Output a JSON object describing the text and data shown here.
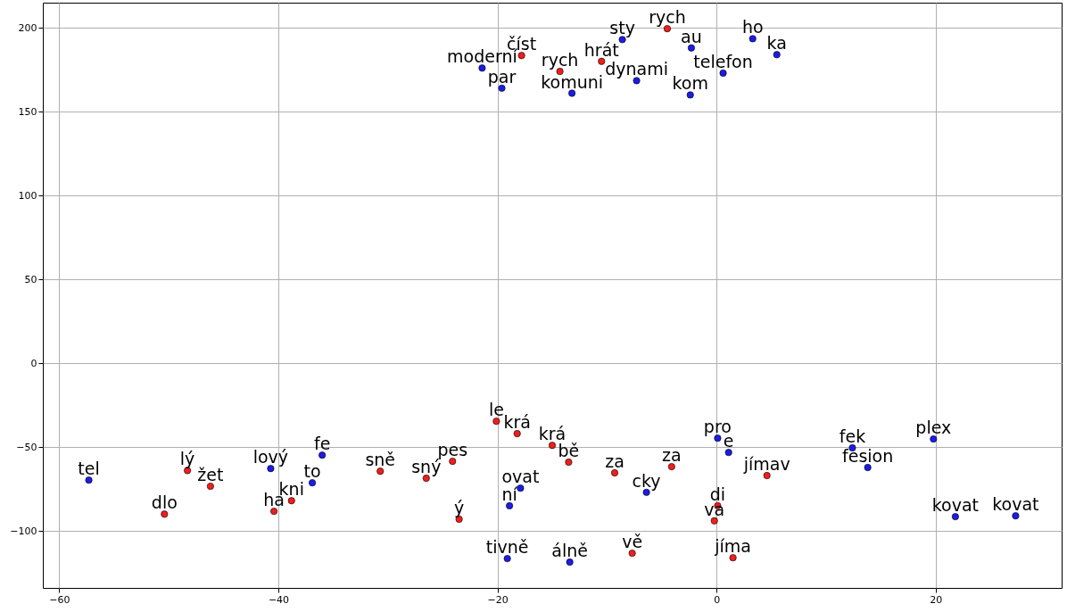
{
  "chart_data": {
    "type": "scatter",
    "grid": true,
    "marker": "circle",
    "xlim": [
      -61.5,
      31.5
    ],
    "ylim": [
      -134,
      215
    ],
    "xticks": [
      {
        "value": -60,
        "label": "−60"
      },
      {
        "value": -40,
        "label": "−40"
      },
      {
        "value": -20,
        "label": "−20"
      },
      0,
      20
    ],
    "yticks": [
      {
        "value": -100,
        "label": "−100"
      },
      {
        "value": -50,
        "label": "−50"
      },
      0,
      50,
      100,
      150,
      200
    ],
    "series": [
      {
        "color": "#f01e1e",
        "x": [
          -17.8,
          -14.3,
          -10.5,
          -4.5,
          -50.4,
          -48.3,
          -46.2,
          -40.4,
          -38.8,
          -30.7,
          -26.5,
          -24.1,
          -23.5,
          -20.1,
          -18.2,
          -15.0,
          -13.5,
          -9.3,
          -7.7,
          -4.1,
          4.6,
          0.1,
          -0.2,
          1.5
        ],
        "values": [
          183.5,
          174,
          180,
          199.5,
          -90,
          -64,
          -73.4,
          -88.3,
          -82,
          -64.4,
          -68.6,
          -58.5,
          -93,
          -34.6,
          -42,
          -49,
          -59,
          -65.4,
          -113.3,
          -61.7,
          -67,
          -85,
          -94,
          -116
        ]
      },
      {
        "color": "#1c1ce6",
        "x": [
          -21.4,
          -19.6,
          -13.2,
          -8.6,
          -7.3,
          -2.3,
          -2.4,
          0.6,
          3.3,
          5.5,
          -57.3,
          -40.7,
          -36.9,
          -36.0,
          -17.9,
          -18.9,
          -19.1,
          -13.4,
          -6.4,
          0.1,
          1.1,
          12.4,
          13.8,
          19.8,
          21.8,
          27.3
        ],
        "values": [
          176,
          164,
          161,
          193,
          168.5,
          188,
          160,
          173,
          193.5,
          184,
          -69.7,
          -62.8,
          -71.3,
          -54.8,
          -74.5,
          -85,
          -116.5,
          -118.6,
          -77,
          -44.7,
          -53.2,
          -50.5,
          -62.2,
          -45.2,
          -91.5,
          -91
        ]
      }
    ],
    "annotations": [
      {
        "text": "moderní",
        "x": -21.4,
        "y": 176
      },
      {
        "text": "číst",
        "x": -17.8,
        "y": 183.5
      },
      {
        "text": "par",
        "x": -19.6,
        "y": 164
      },
      {
        "text": "rych",
        "x": -14.3,
        "y": 174
      },
      {
        "text": "komuni",
        "x": -13.2,
        "y": 161
      },
      {
        "text": "hrát",
        "x": -10.5,
        "y": 180
      },
      {
        "text": "sty",
        "x": -8.6,
        "y": 193
      },
      {
        "text": "dynami",
        "x": -7.3,
        "y": 168.5
      },
      {
        "text": "rych",
        "x": -4.5,
        "y": 199.5
      },
      {
        "text": "au",
        "x": -2.3,
        "y": 188
      },
      {
        "text": "kom",
        "x": -2.4,
        "y": 160
      },
      {
        "text": "telefon",
        "x": 0.6,
        "y": 173
      },
      {
        "text": "ho",
        "x": 3.3,
        "y": 193.5
      },
      {
        "text": "ka",
        "x": 5.5,
        "y": 184
      },
      {
        "text": "tel",
        "x": -57.3,
        "y": -69.7
      },
      {
        "text": "dlo",
        "x": -50.4,
        "y": -90
      },
      {
        "text": "lý",
        "x": -48.3,
        "y": -64
      },
      {
        "text": "žet",
        "x": -46.2,
        "y": -73.4
      },
      {
        "text": "lový",
        "x": -40.7,
        "y": -62.8
      },
      {
        "text": "ha",
        "x": -40.4,
        "y": -88.3
      },
      {
        "text": "kni",
        "x": -38.8,
        "y": -82
      },
      {
        "text": "to",
        "x": -36.9,
        "y": -71.3
      },
      {
        "text": "fe",
        "x": -36.0,
        "y": -54.8
      },
      {
        "text": "sně",
        "x": -30.7,
        "y": -64.4
      },
      {
        "text": "sný",
        "x": -26.5,
        "y": -68.6
      },
      {
        "text": "pes",
        "x": -24.1,
        "y": -58.5
      },
      {
        "text": "ý",
        "x": -23.5,
        "y": -93
      },
      {
        "text": "le",
        "x": -20.1,
        "y": -34.6
      },
      {
        "text": "krá",
        "x": -18.2,
        "y": -42
      },
      {
        "text": "krá",
        "x": -15.0,
        "y": -49
      },
      {
        "text": "ovat",
        "x": -17.9,
        "y": -74.5
      },
      {
        "text": "ní",
        "x": -18.9,
        "y": -85
      },
      {
        "text": "tivně",
        "x": -19.1,
        "y": -116.5
      },
      {
        "text": "bě",
        "x": -13.5,
        "y": -59
      },
      {
        "text": "álně",
        "x": -13.4,
        "y": -118.6
      },
      {
        "text": "za",
        "x": -9.3,
        "y": -65.4
      },
      {
        "text": "cky",
        "x": -6.4,
        "y": -77
      },
      {
        "text": "vě",
        "x": -7.7,
        "y": -113.3
      },
      {
        "text": "za",
        "x": -4.1,
        "y": -61.7
      },
      {
        "text": "pro",
        "x": 0.1,
        "y": -44.7
      },
      {
        "text": "e",
        "x": 1.1,
        "y": -53.2
      },
      {
        "text": "jímav",
        "x": 4.6,
        "y": -67
      },
      {
        "text": "di",
        "x": 0.1,
        "y": -85
      },
      {
        "text": "va",
        "x": -0.2,
        "y": -94
      },
      {
        "text": "jíma",
        "x": 1.5,
        "y": -116
      },
      {
        "text": "fek",
        "x": 12.4,
        "y": -50.5
      },
      {
        "text": "fesion",
        "x": 13.8,
        "y": -62.2
      },
      {
        "text": "plex",
        "x": 19.8,
        "y": -45.2
      },
      {
        "text": "kovat",
        "x": 21.8,
        "y": -91.5
      },
      {
        "text": "kovat",
        "x": 27.3,
        "y": -91
      }
    ]
  }
}
